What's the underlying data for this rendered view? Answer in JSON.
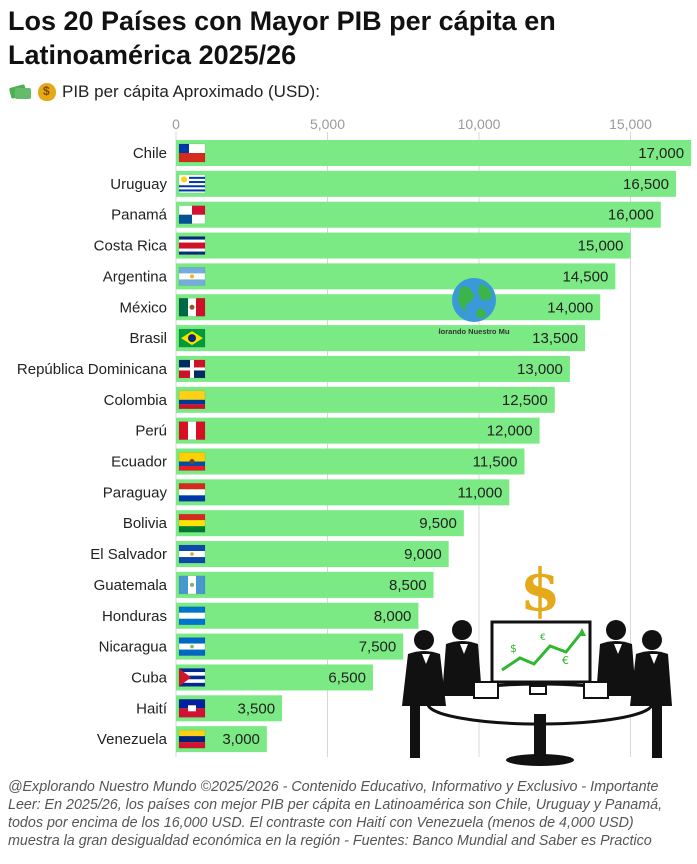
{
  "header": {
    "title": "Los 20 Países con Mayor PIB per cápita en Latinoamérica 2025/26",
    "subtitle": "PIB per cápita Aproximado (USD):",
    "subtitle_icon": "money-bag-icon"
  },
  "logo": {
    "text": "Explorando Nuestro Mundo",
    "icon": "globe-icon"
  },
  "illustration": {
    "icon": "business-meeting-illustration",
    "symbol": "$"
  },
  "footer": {
    "text": "@Explorando Nuestro Mundo ©2025/2026 - Contenido Educativo, Informativo y Exclusivo - Importante Leer: En 2025/26, los países con mejor PIB per cápita en Latinoamérica son Chile, Uruguay y Panamá, todos por encima de los 16,000 USD. El contraste con Haití con Venezuela (menos de 4,000 USD) muestra la gran desigualdad económica en la región - Fuentes: Banco Mundial and Saber es Practico"
  },
  "chart_data": {
    "type": "bar",
    "orientation": "horizontal",
    "title": "Los 20 Países con Mayor PIB per cápita en Latinoamérica 2025/26",
    "xlabel": "PIB per cápita Aproximado (USD):",
    "xlim": [
      0,
      17000
    ],
    "x_ticks": [
      "0",
      "5,000",
      "10,000",
      "15,000"
    ],
    "x_tick_values": [
      0,
      5000,
      10000,
      15000
    ],
    "grid": true,
    "bar_color": "#7bea84",
    "categories": [
      "Chile",
      "Uruguay",
      "Panamá",
      "Costa Rica",
      "Argentina",
      "México",
      "Brasil",
      "República Dominicana",
      "Colombia",
      "Perú",
      "Ecuador",
      "Paraguay",
      "Bolivia",
      "El Salvador",
      "Guatemala",
      "Honduras",
      "Nicaragua",
      "Cuba",
      "Haití",
      "Venezuela"
    ],
    "values": [
      17000,
      16500,
      16000,
      15000,
      14500,
      14000,
      13500,
      13000,
      12500,
      12000,
      11500,
      11000,
      9500,
      9000,
      8500,
      8000,
      7500,
      6500,
      3500,
      3000
    ],
    "value_labels": [
      "17,000",
      "16,500",
      "16,000",
      "15,000",
      "14,500",
      "14,000",
      "13,500",
      "13,000",
      "12,500",
      "12,000",
      "11,500",
      "11,000",
      "9,500",
      "9,000",
      "8,500",
      "8,000",
      "7,500",
      "6,500",
      "3,500",
      "3,000"
    ],
    "flags": [
      "chile-flag-icon",
      "uruguay-flag-icon",
      "panama-flag-icon",
      "costa-rica-flag-icon",
      "argentina-flag-icon",
      "mexico-flag-icon",
      "brazil-flag-icon",
      "dominican-republic-flag-icon",
      "colombia-flag-icon",
      "peru-flag-icon",
      "ecuador-flag-icon",
      "paraguay-flag-icon",
      "bolivia-flag-icon",
      "el-salvador-flag-icon",
      "guatemala-flag-icon",
      "honduras-flag-icon",
      "nicaragua-flag-icon",
      "cuba-flag-icon",
      "haiti-flag-icon",
      "venezuela-flag-icon"
    ]
  }
}
